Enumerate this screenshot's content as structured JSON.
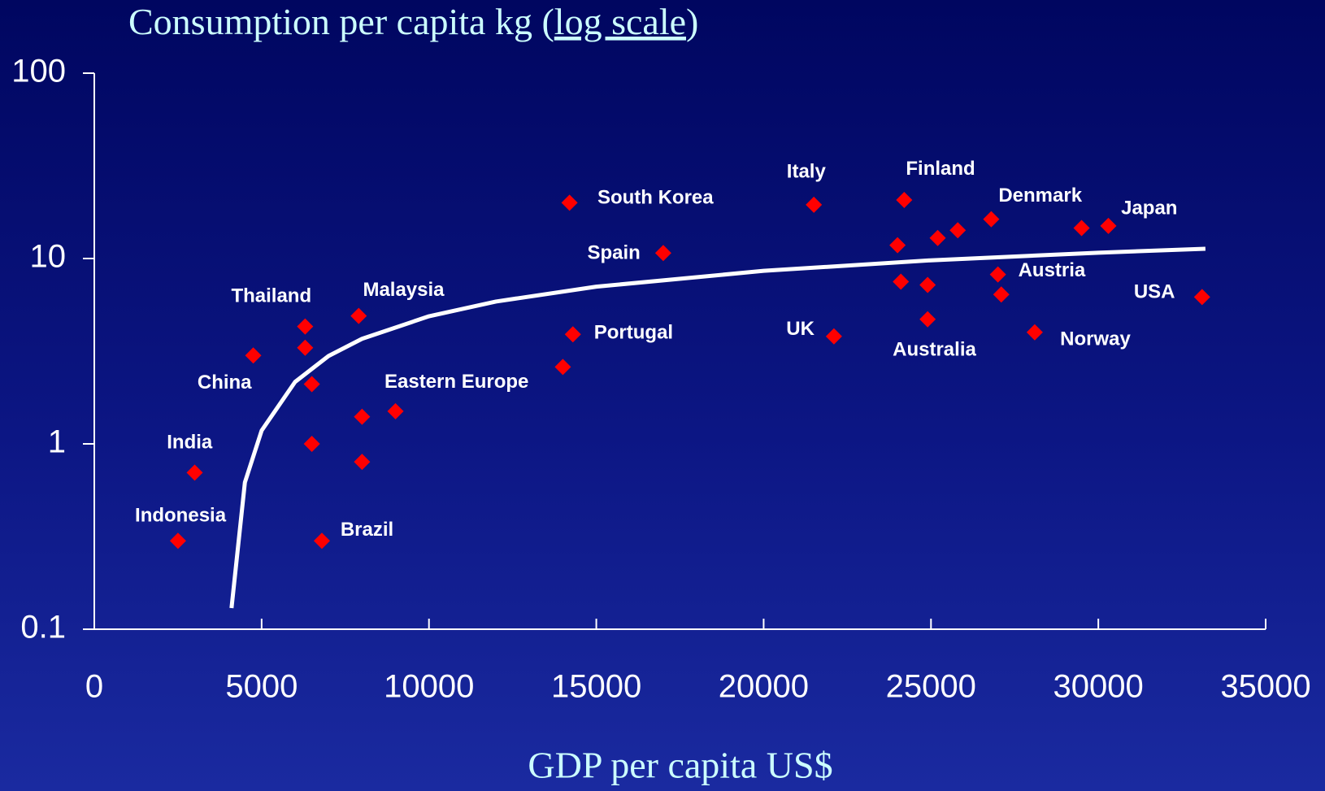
{
  "chart_data": {
    "type": "scatter",
    "y_label": [
      "Consumption per capita kg (",
      "log scale",
      ")"
    ],
    "x_label": "GDP per capita US$",
    "xlim": [
      0,
      35000
    ],
    "xticks": [
      0,
      5000,
      10000,
      15000,
      20000,
      25000,
      30000,
      35000
    ],
    "ylim": [
      0.1,
      100
    ],
    "yticks": [
      0.1,
      1,
      10,
      100
    ],
    "log_y": true,
    "series": [
      {
        "type": "scatter",
        "marker": "diamond",
        "color": "#ff0000",
        "x": [
          2500,
          3000,
          4750,
          6300,
          6300,
          6500,
          6500,
          6800,
          7900,
          8000,
          8000,
          9000,
          14000,
          14200,
          14300,
          17000,
          21500,
          22100,
          24000,
          24100,
          24200,
          24900,
          24900,
          25200,
          25800,
          26800,
          27000,
          27100,
          28100,
          29500,
          30300,
          33100
        ],
        "values": [
          0.3,
          0.7,
          3.0,
          4.3,
          3.3,
          2.1,
          1.0,
          0.3,
          4.9,
          1.4,
          0.8,
          1.5,
          2.6,
          20,
          3.9,
          10.7,
          19.5,
          3.8,
          11.8,
          7.5,
          20.7,
          7.2,
          4.7,
          12.9,
          14.2,
          16.3,
          8.2,
          6.4,
          4.0,
          14.6,
          15,
          6.2
        ],
        "labels": [
          "Indonesia",
          "India",
          "China",
          "Thailand",
          null,
          null,
          null,
          "Brazil",
          "Malaysia",
          null,
          null,
          "Eastern Europe",
          null,
          "South Korea",
          "Portugal",
          "Spain",
          "Italy",
          "UK",
          null,
          null,
          "Finland",
          null,
          "Australia",
          null,
          null,
          "Denmark",
          "Austria",
          null,
          "Norway",
          null,
          "Japan",
          "USA"
        ]
      },
      {
        "type": "line",
        "color": "#ffffff",
        "x": [
          4100,
          4500,
          5000,
          6000,
          7000,
          8000,
          10000,
          12000,
          15000,
          20000,
          25000,
          30000,
          33200
        ],
        "values": [
          0.13,
          0.62,
          1.18,
          2.16,
          2.98,
          3.69,
          4.88,
          5.86,
          7.05,
          8.58,
          9.78,
          10.75,
          11.29
        ]
      }
    ]
  }
}
